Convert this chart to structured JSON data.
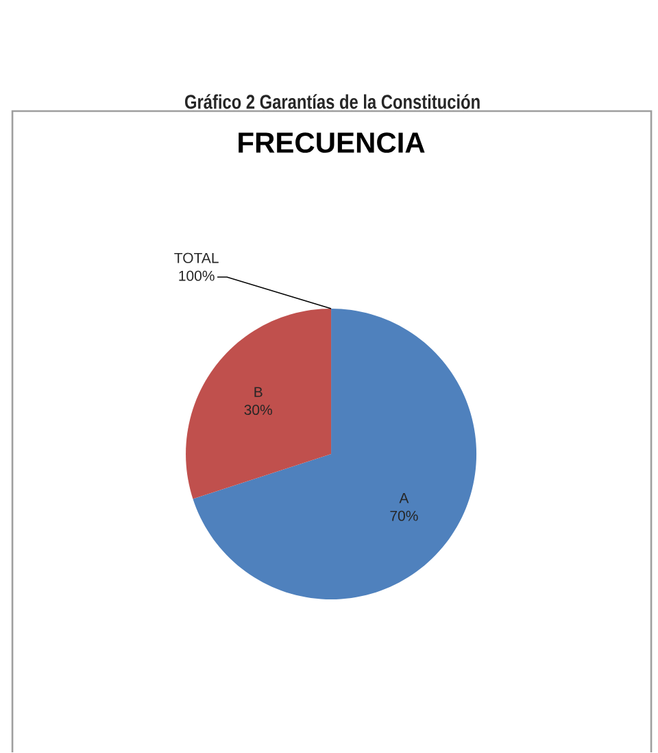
{
  "chart_data": {
    "type": "pie",
    "title": "Gráfico 2 Garantías de la Constitución",
    "subtitle": "FRECUENCIA",
    "categories": [
      "A",
      "B"
    ],
    "values": [
      70,
      30
    ],
    "colors": [
      "#4f81bd",
      "#c0504d"
    ],
    "value_labels": [
      "70%",
      "30%"
    ],
    "annotations": [
      "TOTAL 100%"
    ]
  }
}
